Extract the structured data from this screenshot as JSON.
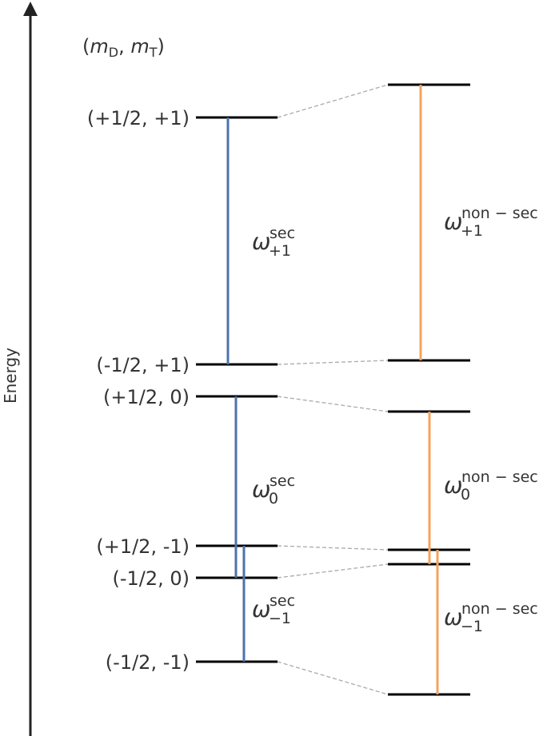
{
  "axis_label": "Energy",
  "header": {
    "parts": [
      "(",
      "m",
      "D",
      ", ",
      "m",
      "T",
      ")"
    ]
  },
  "levels": [
    {
      "label": "(+1/2, +1)"
    },
    {
      "label": "(-1/2, +1)"
    },
    {
      "label": "(+1/2, 0)"
    },
    {
      "label": "(+1/2, -1)"
    },
    {
      "label": "(-1/2, 0)"
    },
    {
      "label": "(-1/2, -1)"
    }
  ],
  "transitions": [
    {
      "symbol": "ω",
      "superscript": "sec",
      "subscript": "+1"
    },
    {
      "symbol": "ω",
      "superscript": "sec",
      "subscript": "0"
    },
    {
      "symbol": "ω",
      "superscript": "sec",
      "subscript": "−1"
    },
    {
      "symbol": "ω",
      "superscript": "non − sec",
      "subscript": "+1"
    },
    {
      "symbol": "ω",
      "superscript": "non − sec",
      "subscript": "0"
    },
    {
      "symbol": "ω",
      "superscript": "non − sec",
      "subscript": "−1"
    }
  ]
}
